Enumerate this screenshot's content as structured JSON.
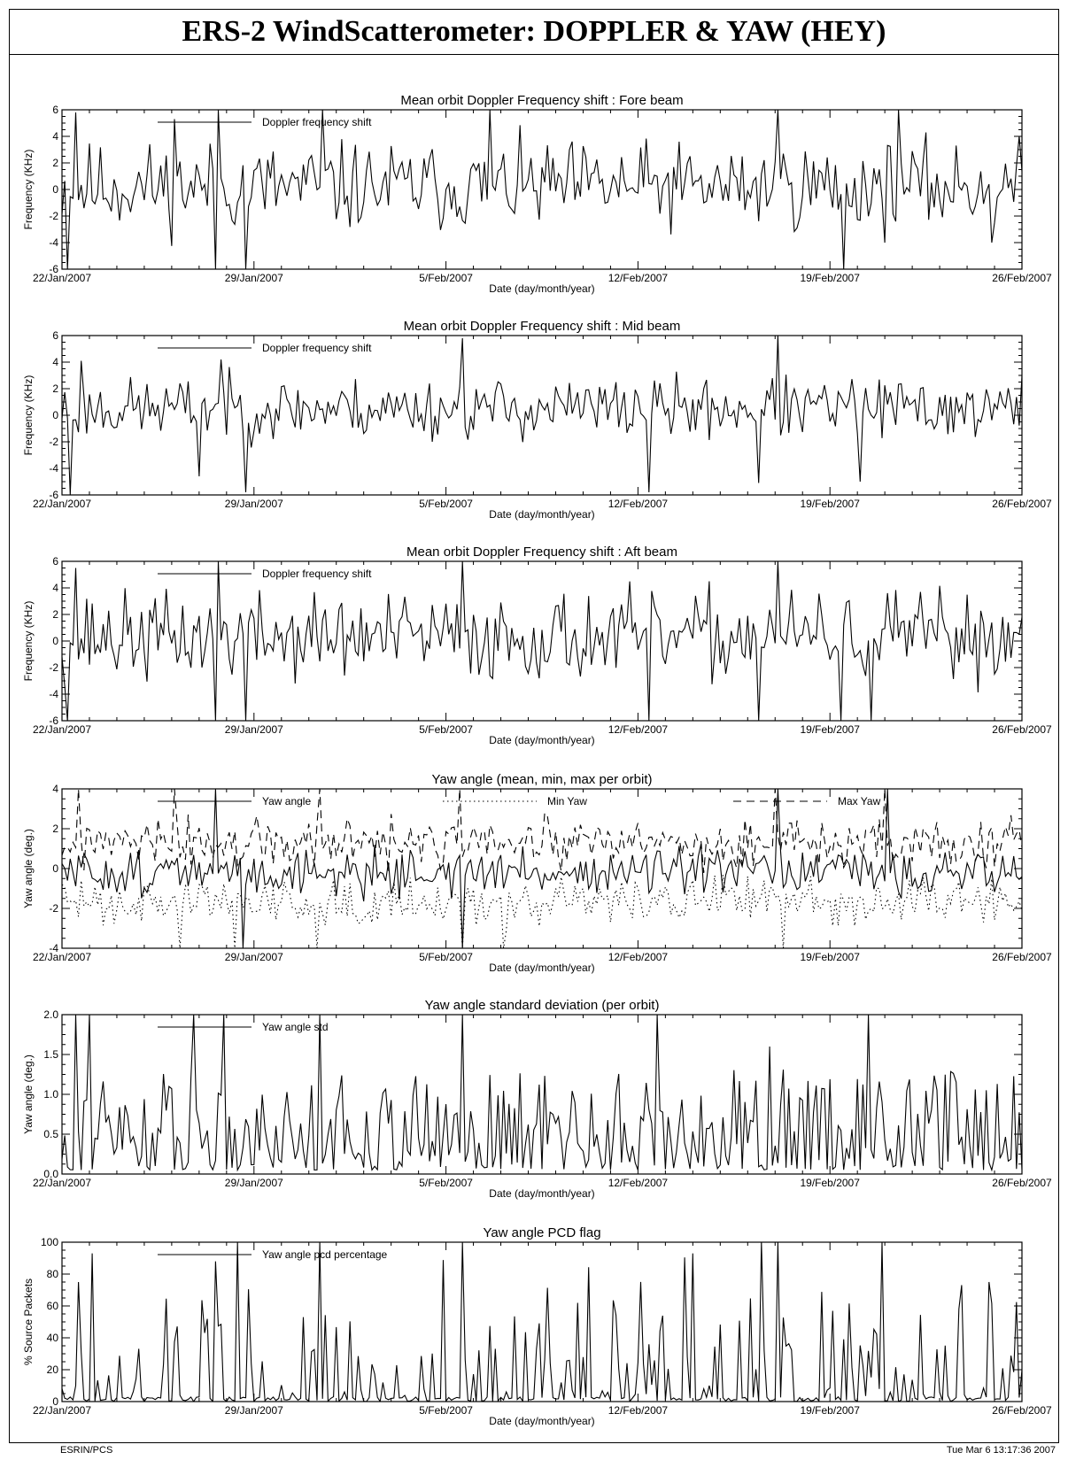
{
  "page": {
    "title": "ERS-2 WindScatterometer: DOPPLER & YAW (HEY)",
    "footer_left": "ESRIN/PCS",
    "footer_right": "Tue Mar  6 13:17:36 2007"
  },
  "chart_data": [
    {
      "type": "line",
      "title": "Mean orbit Doppler Frequency shift : Fore beam",
      "xlabel": "Date (day/month/year)",
      "ylabel": "Frequency (KHz)",
      "xlim": [
        0,
        35
      ],
      "ylim": [
        -6,
        6
      ],
      "yticks": [
        -6,
        -4,
        -2,
        0,
        2,
        4,
        6
      ],
      "xticks": [
        0,
        7,
        14,
        21,
        28,
        35
      ],
      "xtick_labels": [
        "22/Jan/2007",
        "29/Jan/2007",
        "5/Feb/2007",
        "12/Feb/2007",
        "19/Feb/2007",
        "26/Feb/2007"
      ],
      "legend": [
        {
          "name": "Doppler frequency shift",
          "style": "solid"
        }
      ],
      "series": [
        {
          "name": "Doppler frequency shift",
          "style": "solid",
          "amp": 2.6,
          "offset": 0.2,
          "seed": 11,
          "spikes": [
            [
              0.2,
              -6
            ],
            [
              0.5,
              5.8
            ],
            [
              4.1,
              5.3
            ],
            [
              5.6,
              -6
            ],
            [
              5.7,
              6
            ],
            [
              6.7,
              -6
            ],
            [
              9.5,
              6
            ],
            [
              15.6,
              6
            ],
            [
              26.1,
              6
            ],
            [
              28.5,
              -6
            ],
            [
              30.5,
              6
            ],
            [
              33.9,
              -4
            ]
          ]
        }
      ]
    },
    {
      "type": "line",
      "title": "Mean orbit Doppler Frequency shift : Mid  beam",
      "xlabel": "Date (day/month/year)",
      "ylabel": "Frequency (KHz)",
      "xlim": [
        0,
        35
      ],
      "ylim": [
        -6,
        6
      ],
      "yticks": [
        -6,
        -4,
        -2,
        0,
        2,
        4,
        6
      ],
      "xticks": [
        0,
        7,
        14,
        21,
        28,
        35
      ],
      "xtick_labels": [
        "22/Jan/2007",
        "29/Jan/2007",
        "5/Feb/2007",
        "12/Feb/2007",
        "19/Feb/2007",
        "26/Feb/2007"
      ],
      "legend": [
        {
          "name": "Doppler frequency shift",
          "style": "solid"
        }
      ],
      "series": [
        {
          "name": "Doppler frequency shift",
          "style": "solid",
          "amp": 1.8,
          "offset": 0.5,
          "seed": 23,
          "spikes": [
            [
              0.3,
              -6
            ],
            [
              0.7,
              4.1
            ],
            [
              5.0,
              -4.6
            ],
            [
              5.8,
              4.2
            ],
            [
              6.7,
              -5.8
            ],
            [
              14.6,
              5.8
            ],
            [
              21.4,
              -5.8
            ],
            [
              25.4,
              -5.1
            ],
            [
              26.1,
              6
            ],
            [
              29.1,
              -5
            ]
          ]
        }
      ]
    },
    {
      "type": "line",
      "title": "Mean orbit Doppler Frequency shift : Aft beam",
      "xlabel": "Date (day/month/year)",
      "ylabel": "Frequency (KHz)",
      "xlim": [
        0,
        35
      ],
      "ylim": [
        -6,
        6
      ],
      "yticks": [
        -6,
        -4,
        -2,
        0,
        2,
        4,
        6
      ],
      "xticks": [
        0,
        7,
        14,
        21,
        28,
        35
      ],
      "xtick_labels": [
        "22/Jan/2007",
        "29/Jan/2007",
        "5/Feb/2007",
        "12/Feb/2007",
        "19/Feb/2007",
        "26/Feb/2007"
      ],
      "legend": [
        {
          "name": "Doppler frequency shift",
          "style": "solid"
        }
      ],
      "series": [
        {
          "name": "Doppler frequency shift",
          "style": "solid",
          "amp": 2.6,
          "offset": 0.3,
          "seed": 37,
          "spikes": [
            [
              0.2,
              -6
            ],
            [
              0.5,
              5.5
            ],
            [
              5.6,
              -6
            ],
            [
              5.7,
              6
            ],
            [
              6.7,
              -6
            ],
            [
              14.6,
              6
            ],
            [
              21.4,
              -6
            ],
            [
              25.4,
              -6
            ],
            [
              26.1,
              6
            ],
            [
              28.4,
              -6
            ],
            [
              29.5,
              -6
            ]
          ]
        }
      ]
    },
    {
      "type": "line",
      "title": "Yaw angle (mean, min, max per orbit)",
      "xlabel": "Date (day/month/year)",
      "ylabel": "Yaw angle (deg.)",
      "xlim": [
        0,
        35
      ],
      "ylim": [
        -4,
        4
      ],
      "yticks": [
        -4,
        -2,
        0,
        2,
        4
      ],
      "xticks": [
        0,
        7,
        14,
        21,
        28,
        35
      ],
      "xtick_labels": [
        "22/Jan/2007",
        "29/Jan/2007",
        "5/Feb/2007",
        "12/Feb/2007",
        "19/Feb/2007",
        "26/Feb/2007"
      ],
      "legend": [
        {
          "name": "Yaw angle",
          "style": "solid"
        },
        {
          "name": "Min Yaw",
          "style": "dotted"
        },
        {
          "name": "Max Yaw",
          "style": "dashed"
        }
      ],
      "series": [
        {
          "name": "Yaw angle",
          "style": "solid",
          "amp": 0.9,
          "offset": -0.2,
          "seed": 51,
          "spikes": [
            [
              5.6,
              4
            ],
            [
              6.6,
              -4
            ],
            [
              14.6,
              -4
            ],
            [
              26.1,
              4
            ],
            [
              30.1,
              4
            ]
          ]
        },
        {
          "name": "Min Yaw",
          "style": "dotted",
          "amp": 0.9,
          "offset": -1.6,
          "seed": 63,
          "spikes": [
            [
              4.3,
              -4
            ],
            [
              6.3,
              -4
            ],
            [
              9.3,
              -4
            ],
            [
              14.6,
              -4
            ],
            [
              16.1,
              -4
            ],
            [
              26.3,
              -4
            ]
          ]
        },
        {
          "name": "Max Yaw",
          "style": "dashed",
          "amp": 1.0,
          "offset": 1.2,
          "seed": 77,
          "spikes": [
            [
              0.6,
              4
            ],
            [
              4.1,
              4
            ],
            [
              9.4,
              4
            ],
            [
              14.5,
              4
            ],
            [
              26.0,
              4
            ],
            [
              30.0,
              4
            ]
          ]
        }
      ]
    },
    {
      "type": "line",
      "title": "Yaw angle standard deviation (per orbit)",
      "xlabel": "Date (day/month/year)",
      "ylabel": "Yaw angle (deg.)",
      "xlim": [
        0,
        35
      ],
      "ylim": [
        0,
        2
      ],
      "yticks": [
        0.0,
        0.5,
        1.0,
        1.5,
        2.0
      ],
      "ytick_labels": [
        "0.0",
        "0.5",
        "1.0",
        "1.5",
        "2.0"
      ],
      "xticks": [
        0,
        7,
        14,
        21,
        28,
        35
      ],
      "xtick_labels": [
        "22/Jan/2007",
        "29/Jan/2007",
        "5/Feb/2007",
        "12/Feb/2007",
        "19/Feb/2007",
        "26/Feb/2007"
      ],
      "legend": [
        {
          "name": "Yaw angle std",
          "style": "solid"
        }
      ],
      "series": [
        {
          "name": "Yaw angle std",
          "style": "solid",
          "amp": 0.9,
          "base": 0.05,
          "positive": true,
          "seed": 91,
          "spikes": [
            [
              0.5,
              2
            ],
            [
              1.0,
              2
            ],
            [
              4.8,
              2
            ],
            [
              5.9,
              2
            ],
            [
              9.4,
              2
            ],
            [
              14.6,
              2
            ],
            [
              21.7,
              2
            ],
            [
              25.8,
              1.6
            ],
            [
              29.4,
              2
            ]
          ]
        }
      ]
    },
    {
      "type": "line",
      "title": "Yaw angle PCD flag",
      "xlabel": "Date (day/month/year)",
      "ylabel": "% Source Packets",
      "xlim": [
        0,
        35
      ],
      "ylim": [
        0,
        100
      ],
      "yticks": [
        0,
        20,
        40,
        60,
        80,
        100
      ],
      "xticks": [
        0,
        7,
        14,
        21,
        28,
        35
      ],
      "xtick_labels": [
        "22/Jan/2007",
        "29/Jan/2007",
        "5/Feb/2007",
        "12/Feb/2007",
        "19/Feb/2007",
        "26/Feb/2007"
      ],
      "legend": [
        {
          "name": "Yaw angle pcd percentage",
          "style": "solid"
        }
      ],
      "series": [
        {
          "name": "Yaw angle pcd percentage",
          "style": "solid",
          "amp": 45,
          "base": 0,
          "sparse": true,
          "seed": 107,
          "spikes": [
            [
              0.6,
              75
            ],
            [
              1.1,
              93
            ],
            [
              5.6,
              88
            ],
            [
              6.4,
              100
            ],
            [
              9.4,
              100
            ],
            [
              14.6,
              100
            ],
            [
              23.0,
              93
            ],
            [
              25.5,
              100
            ],
            [
              26.1,
              100
            ],
            [
              29.9,
              100
            ],
            [
              33.8,
              75
            ]
          ]
        }
      ]
    }
  ]
}
